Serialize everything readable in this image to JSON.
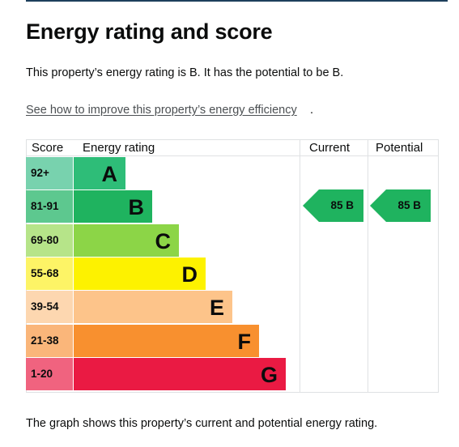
{
  "heading": "Energy rating and score",
  "summary": "This property’s energy rating is B. It has the potential to be B.",
  "improve_link": "See how to improve this property’s energy efficiency",
  "improve_link_suffix": ".",
  "table": {
    "headers": {
      "score": "Score",
      "rating": "Energy rating",
      "current": "Current",
      "potential": "Potential"
    },
    "bands": [
      {
        "score": "92+",
        "letter": "A",
        "color": "#2ebd78",
        "score_bg": "#78d2ae"
      },
      {
        "score": "81-91",
        "letter": "B",
        "color": "#1fb35f",
        "score_bg": "#5dc88f"
      },
      {
        "score": "69-80",
        "letter": "C",
        "color": "#8cd547",
        "score_bg": "#b6e489"
      },
      {
        "score": "55-68",
        "letter": "D",
        "color": "#fdf200",
        "score_bg": "#fdf466"
      },
      {
        "score": "39-54",
        "letter": "E",
        "color": "#fdc48a",
        "score_bg": "#fdd7b0"
      },
      {
        "score": "21-38",
        "letter": "F",
        "color": "#f8902f",
        "score_bg": "#fab67a"
      },
      {
        "score": "1-20",
        "letter": "G",
        "color": "#ea1a43",
        "score_bg": "#f0637f"
      }
    ],
    "current": {
      "label": "85 B",
      "score": 85,
      "band": "B",
      "color": "#1fb35f"
    },
    "potential": {
      "label": "85 B",
      "score": 85,
      "band": "B",
      "color": "#1fb35f"
    }
  },
  "footer": "The graph shows this property’s current and potential energy rating."
}
